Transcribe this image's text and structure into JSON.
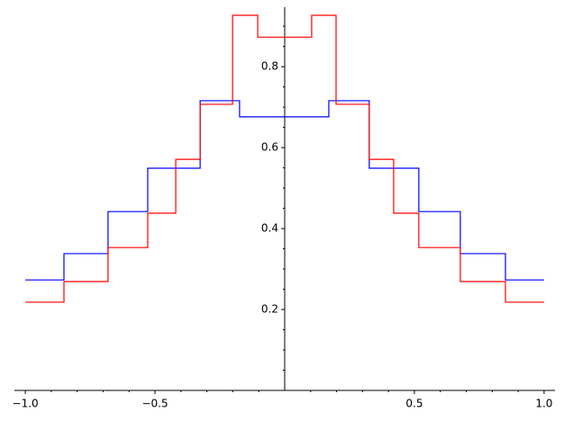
{
  "chart_data": {
    "type": "step",
    "xlim": [
      -1.042,
      1.042
    ],
    "ylim": [
      0,
      0.947
    ],
    "xticks": [
      {
        "value": -1,
        "label": "−1.0"
      },
      {
        "value": -0.5,
        "label": "−0.5"
      },
      0.5,
      {
        "value": 1,
        "label": "1.0"
      }
    ],
    "yticks": [
      0.2,
      0.4,
      0.6,
      0.8
    ],
    "xminorticks": [
      -0.9,
      -0.8,
      -0.7,
      -0.6,
      -0.4,
      -0.3,
      -0.2,
      -0.1,
      0.1,
      0.2,
      0.3,
      0.4,
      0.6,
      0.7,
      0.8,
      0.9
    ],
    "yminorticks": [
      0.05,
      0.1,
      0.15,
      0.25,
      0.3,
      0.35,
      0.45,
      0.5,
      0.55,
      0.65,
      0.7,
      0.75,
      0.85,
      0.9
    ],
    "step": "post",
    "series": [
      {
        "color": "#0000ff",
        "x": [
          -1,
          -0.851,
          -0.681,
          -0.528,
          -0.326,
          -0.174,
          0.17,
          0.326,
          0.517,
          0.677,
          0.851,
          1
        ],
        "values": [
          0.273,
          0.338,
          0.442,
          0.549,
          0.716,
          0.676,
          0.716,
          0.549,
          0.442,
          0.338,
          0.273,
          0.273
        ]
      },
      {
        "color": "#ff0000",
        "x": [
          -1,
          -0.851,
          -0.681,
          -0.528,
          -0.42,
          -0.326,
          -0.201,
          -0.104,
          0.104,
          0.198,
          0.326,
          0.42,
          0.517,
          0.677,
          0.851,
          1
        ],
        "values": [
          0.218,
          0.269,
          0.353,
          0.438,
          0.571,
          0.707,
          0.927,
          0.873,
          0.927,
          0.707,
          0.571,
          0.438,
          0.353,
          0.269,
          0.218,
          0.218
        ]
      }
    ]
  }
}
